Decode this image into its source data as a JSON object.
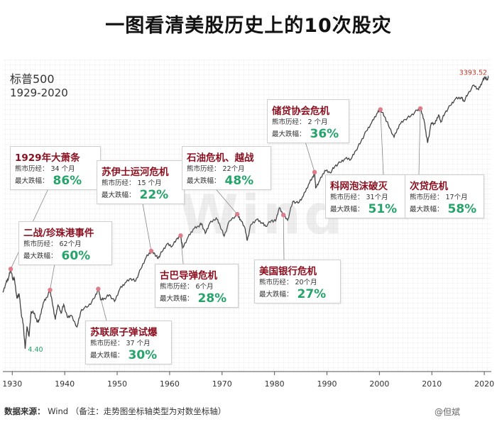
{
  "title": "一图看清美股历史上的10次股灾",
  "series_label": "标普500",
  "range_label": "1929-2020",
  "watermark": "Wind",
  "source": {
    "label": "数据来源：",
    "value": "Wind",
    "note": "（备注：走势图坐标轴类型为对数坐标轴）"
  },
  "credit": "@但斌",
  "colors": {
    "accent_red": "#8b1020",
    "accent_green": "#25a46a",
    "line": "#444444",
    "marker": "#e07b8a"
  },
  "chart_data": {
    "type": "line",
    "title": "一图看清美股历史上的10次股灾",
    "series_name": "标普500",
    "yscale": "log",
    "ylim": [
      3,
      5000
    ],
    "xlim": [
      1928.2,
      2020.8
    ],
    "x_ticks": [
      1930,
      1940,
      1950,
      1960,
      1970,
      1980,
      1990,
      2000,
      2010,
      2020
    ],
    "x_tick_labels": [
      "1930",
      "1940",
      "1950",
      "1960",
      "1970",
      "1980",
      "1990",
      "2000",
      "2010",
      "2020"
    ],
    "annotations_values": {
      "min_label": "4.40",
      "max_label": "3393.52"
    },
    "points": [
      [
        1928.2,
        17.5
      ],
      [
        1928.8,
        22
      ],
      [
        1929.3,
        25
      ],
      [
        1929.7,
        31
      ],
      [
        1930.1,
        24
      ],
      [
        1930.4,
        24.5
      ],
      [
        1930.9,
        15
      ],
      [
        1931.3,
        17
      ],
      [
        1931.7,
        10.5
      ],
      [
        1932.1,
        8
      ],
      [
        1932.45,
        4.4
      ],
      [
        1932.8,
        7.5
      ],
      [
        1933.2,
        6
      ],
      [
        1933.6,
        11
      ],
      [
        1934.2,
        10.5
      ],
      [
        1934.7,
        8.5
      ],
      [
        1935.2,
        9
      ],
      [
        1935.9,
        13.5
      ],
      [
        1936.6,
        15.5
      ],
      [
        1937.2,
        18.5
      ],
      [
        1937.6,
        14
      ],
      [
        1938.2,
        9
      ],
      [
        1938.7,
        13
      ],
      [
        1939.3,
        10.5
      ],
      [
        1939.8,
        13
      ],
      [
        1940.5,
        9.5
      ],
      [
        1941.2,
        10
      ],
      [
        1942.35,
        7.5
      ],
      [
        1943.2,
        11.5
      ],
      [
        1944.5,
        12.5
      ],
      [
        1945.6,
        15
      ],
      [
        1946.4,
        19
      ],
      [
        1946.9,
        14.5
      ],
      [
        1947.6,
        15
      ],
      [
        1948.5,
        16.5
      ],
      [
        1949.5,
        14
      ],
      [
        1950.5,
        19
      ],
      [
        1951.5,
        22
      ],
      [
        1952.6,
        24.5
      ],
      [
        1953.5,
        23
      ],
      [
        1954.5,
        31
      ],
      [
        1955.5,
        41
      ],
      [
        1956.5,
        48
      ],
      [
        1957.2,
        44.5
      ],
      [
        1957.8,
        40
      ],
      [
        1958.5,
        47
      ],
      [
        1959.5,
        57
      ],
      [
        1960.5,
        54
      ],
      [
        1961.5,
        66
      ],
      [
        1962.1,
        70
      ],
      [
        1962.5,
        52
      ],
      [
        1963.5,
        67
      ],
      [
        1964.5,
        82
      ],
      [
        1965.5,
        88
      ],
      [
        1966.1,
        94
      ],
      [
        1966.8,
        74
      ],
      [
        1967.6,
        94
      ],
      [
        1968.9,
        108
      ],
      [
        1969.6,
        90
      ],
      [
        1970.4,
        69
      ],
      [
        1971.4,
        100
      ],
      [
        1972.9,
        118
      ],
      [
        1973.5,
        104
      ],
      [
        1974.4,
        83
      ],
      [
        1974.8,
        62
      ],
      [
        1975.5,
        92
      ],
      [
        1976.6,
        104
      ],
      [
        1977.6,
        96
      ],
      [
        1978.3,
        88
      ],
      [
        1979.4,
        101
      ],
      [
        1980.2,
        100
      ],
      [
        1980.9,
        138
      ],
      [
        1981.7,
        116
      ],
      [
        1982.5,
        102
      ],
      [
        1983.5,
        162
      ],
      [
        1984.5,
        155
      ],
      [
        1985.5,
        185
      ],
      [
        1986.5,
        245
      ],
      [
        1987.4,
        300
      ],
      [
        1987.65,
        330
      ],
      [
        1987.85,
        225
      ],
      [
        1988.6,
        268
      ],
      [
        1989.6,
        345
      ],
      [
        1990.6,
        325
      ],
      [
        1991.5,
        380
      ],
      [
        1992.5,
        420
      ],
      [
        1993.5,
        460
      ],
      [
        1994.6,
        455
      ],
      [
        1995.5,
        560
      ],
      [
        1996.5,
        700
      ],
      [
        1997.5,
        900
      ],
      [
        1998.5,
        1100
      ],
      [
        1999.5,
        1380
      ],
      [
        2000.2,
        1527
      ],
      [
        2001.0,
        1280
      ],
      [
        2001.7,
        1050
      ],
      [
        2002.8,
        777
      ],
      [
        2003.8,
        1050
      ],
      [
        2004.9,
        1200
      ],
      [
        2006.0,
        1310
      ],
      [
        2007.2,
        1500
      ],
      [
        2007.8,
        1565
      ],
      [
        2008.5,
        1200
      ],
      [
        2008.9,
        850
      ],
      [
        2009.2,
        677
      ],
      [
        2009.9,
        1100
      ],
      [
        2010.6,
        1080
      ],
      [
        2011.3,
        1350
      ],
      [
        2011.7,
        1120
      ],
      [
        2012.5,
        1400
      ],
      [
        2013.5,
        1680
      ],
      [
        2014.5,
        1980
      ],
      [
        2015.6,
        2060
      ],
      [
        2016.1,
        1860
      ],
      [
        2016.9,
        2240
      ],
      [
        2018.0,
        2780
      ],
      [
        2018.9,
        2480
      ],
      [
        2019.6,
        3000
      ],
      [
        2020.1,
        3393.52
      ],
      [
        2020.5,
        3150
      ],
      [
        2020.8,
        3320
      ]
    ],
    "event_markers": [
      {
        "event": "1929年大萧条",
        "x": 1929.7,
        "y": 31
      },
      {
        "event": "二战/珍珠港事件",
        "x": 1937.2,
        "y": 18.5
      },
      {
        "event": "苏联原子弹试爆",
        "x": 1946.4,
        "y": 19
      },
      {
        "event": "苏伊士运河危机",
        "x": 1956.5,
        "y": 48
      },
      {
        "event": "古巴导弹危机",
        "x": 1962.1,
        "y": 70
      },
      {
        "event": "石油危机、越战",
        "x": 1972.9,
        "y": 118
      },
      {
        "event": "美国银行危机",
        "x": 1981.7,
        "y": 116
      },
      {
        "event": "储贷协会危机",
        "x": 1987.65,
        "y": 330
      },
      {
        "event": "科网泡沫破灭",
        "x": 2000.2,
        "y": 1527
      },
      {
        "event": "次贷危机",
        "x": 2007.8,
        "y": 1565
      }
    ]
  },
  "crises": [
    {
      "name": "1929年大萧条",
      "duration_label": "熊市历经：",
      "duration": "34 个月",
      "drop_label": "最大跌幅：",
      "drop": "86%"
    },
    {
      "name": "二战/珍珠港事件",
      "duration_label": "熊市历经：",
      "duration": "62个月",
      "drop_label": "最大跌幅：",
      "drop": "60%"
    },
    {
      "name": "苏联原子弹试爆",
      "duration_label": "熊市历经：",
      "duration": "37 个月",
      "drop_label": "最大跌幅：",
      "drop": "30%"
    },
    {
      "name": "苏伊士运河危机",
      "duration_label": "熊市历经：",
      "duration": "15 个月",
      "drop_label": "最大跌幅：",
      "drop": "22%"
    },
    {
      "name": "古巴导弹危机",
      "duration_label": "熊市历经：",
      "duration": "6个月",
      "drop_label": "最大跌幅：",
      "drop": "28%"
    },
    {
      "name": "石油危机、越战",
      "duration_label": "熊市历经：",
      "duration": "22个月",
      "drop_label": "最大跌幅：",
      "drop": "48%"
    },
    {
      "name": "美国银行危机",
      "duration_label": "熊市历经：",
      "duration": "20个月",
      "drop_label": "最大跌幅：",
      "drop": "27%"
    },
    {
      "name": "储贷协会危机",
      "duration_label": "熊市历经：",
      "duration": "2 个月",
      "drop_label": "最大跌幅：",
      "drop": "36%"
    },
    {
      "name": "科网泡沫破灭",
      "duration_label": "熊市历经：",
      "duration": "31个月",
      "drop_label": "最大跌幅：",
      "drop": "51%"
    },
    {
      "name": "次贷危机",
      "duration_label": "熊市历经：",
      "duration": "17个月",
      "drop_label": "最大跌幅：",
      "drop": "58%"
    }
  ]
}
